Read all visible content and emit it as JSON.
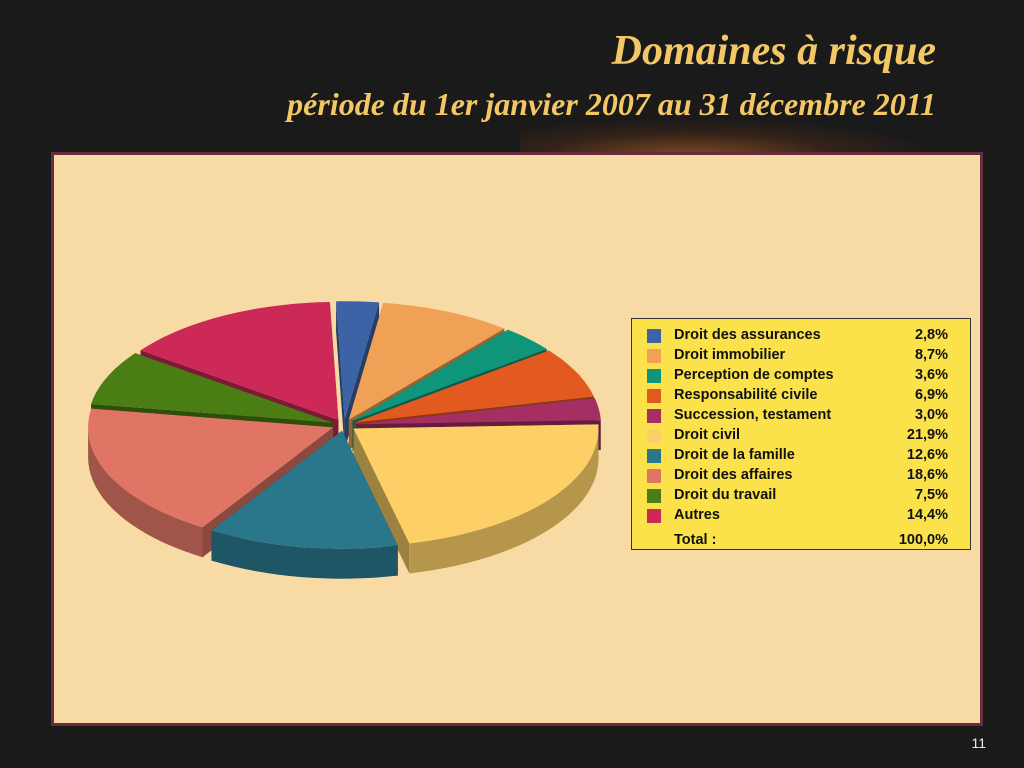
{
  "slide": {
    "title": "Domaines à risque",
    "subtitle": "période du 1er janvier 2007 au 31 décembre 2011",
    "page_number": "11"
  },
  "chart_data": {
    "type": "pie",
    "three_d": true,
    "exploded": true,
    "legend_placement": "right",
    "slices": [
      {
        "label": "Droit des assurances",
        "value": 2.8,
        "display": "2,8%",
        "color": "#3b63a6"
      },
      {
        "label": "Droit immobilier",
        "value": 8.7,
        "display": "8,7%",
        "color": "#f0a156"
      },
      {
        "label": "Perception de comptes",
        "value": 3.6,
        "display": "3,6%",
        "color": "#0f9579"
      },
      {
        "label": "Responsabilité civile",
        "value": 6.9,
        "display": "6,9%",
        "color": "#e25a1f"
      },
      {
        "label": "Succession, testament",
        "value": 3.0,
        "display": "3,0%",
        "color": "#a52e62"
      },
      {
        "label": "Droit civil",
        "value": 21.9,
        "display": "21,9%",
        "color": "#fcd067"
      },
      {
        "label": "Droit de la famille",
        "value": 12.6,
        "display": "12,6%",
        "color": "#2a778c"
      },
      {
        "label": "Droit des affaires",
        "value": 18.6,
        "display": "18,6%",
        "color": "#e07565"
      },
      {
        "label": "Droit du travail",
        "value": 7.5,
        "display": "7,5%",
        "color": "#4a7d14"
      },
      {
        "label": "Autres",
        "value": 14.4,
        "display": "14,4%",
        "color": "#cc2957"
      }
    ],
    "total": {
      "label": "Total :",
      "display": "100,0%"
    }
  }
}
